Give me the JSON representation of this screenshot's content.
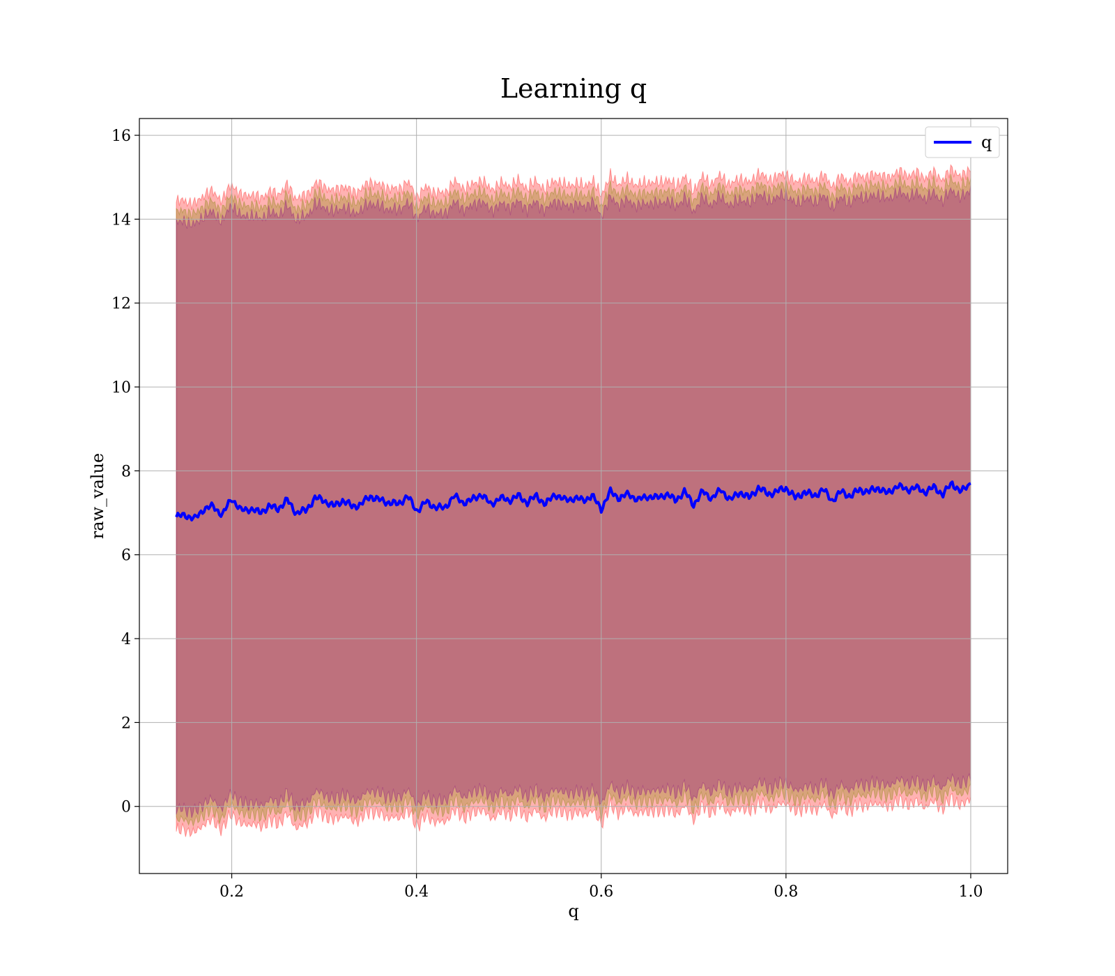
{
  "chart_data": {
    "type": "line",
    "title": "Learning q",
    "xlabel": "q",
    "ylabel": "raw_value",
    "xlim": [
      0.1,
      1.04
    ],
    "ylim": [
      -1.6,
      16.4
    ],
    "xticks": [
      0.2,
      0.4,
      0.6,
      0.8,
      1.0
    ],
    "xtick_labels": [
      "0.2",
      "0.4",
      "0.6",
      "0.8",
      "1.0"
    ],
    "yticks": [
      0,
      2,
      4,
      6,
      8,
      10,
      12,
      14,
      16
    ],
    "ytick_labels": [
      "0",
      "2",
      "4",
      "6",
      "8",
      "10",
      "12",
      "14",
      "16"
    ],
    "grid": true,
    "legend": {
      "position": "top-right",
      "entries": [
        "q"
      ]
    },
    "series": [
      {
        "name": "q",
        "color": "#0000ff",
        "x": [
          0.14,
          0.15,
          0.16,
          0.17,
          0.18,
          0.19,
          0.2,
          0.21,
          0.22,
          0.23,
          0.24,
          0.25,
          0.26,
          0.27,
          0.28,
          0.29,
          0.3,
          0.31,
          0.32,
          0.33,
          0.34,
          0.35,
          0.36,
          0.37,
          0.38,
          0.39,
          0.4,
          0.41,
          0.42,
          0.43,
          0.44,
          0.45,
          0.46,
          0.47,
          0.48,
          0.49,
          0.5,
          0.51,
          0.52,
          0.53,
          0.54,
          0.55,
          0.56,
          0.57,
          0.58,
          0.59,
          0.6,
          0.61,
          0.62,
          0.63,
          0.64,
          0.65,
          0.66,
          0.67,
          0.68,
          0.69,
          0.7,
          0.71,
          0.72,
          0.73,
          0.74,
          0.75,
          0.76,
          0.77,
          0.78,
          0.79,
          0.8,
          0.81,
          0.82,
          0.83,
          0.84,
          0.85,
          0.86,
          0.87,
          0.88,
          0.89,
          0.9,
          0.91,
          0.92,
          0.93,
          0.94,
          0.95,
          0.96,
          0.97,
          0.98,
          0.99,
          1.0
        ],
        "values": [
          6.9,
          6.95,
          6.85,
          7.1,
          7.15,
          6.95,
          7.35,
          7.05,
          7.1,
          7.0,
          7.15,
          7.1,
          7.3,
          7.0,
          7.05,
          7.35,
          7.3,
          7.15,
          7.3,
          7.15,
          7.2,
          7.4,
          7.3,
          7.25,
          7.2,
          7.4,
          7.05,
          7.25,
          7.15,
          7.1,
          7.4,
          7.25,
          7.3,
          7.45,
          7.2,
          7.35,
          7.3,
          7.4,
          7.25,
          7.4,
          7.2,
          7.45,
          7.3,
          7.35,
          7.3,
          7.4,
          7.1,
          7.5,
          7.35,
          7.45,
          7.3,
          7.4,
          7.35,
          7.45,
          7.3,
          7.5,
          7.2,
          7.5,
          7.35,
          7.55,
          7.3,
          7.5,
          7.35,
          7.6,
          7.45,
          7.5,
          7.6,
          7.35,
          7.5,
          7.4,
          7.55,
          7.3,
          7.5,
          7.4,
          7.55,
          7.5,
          7.6,
          7.45,
          7.65,
          7.55,
          7.6,
          7.5,
          7.6,
          7.45,
          7.7,
          7.5,
          7.7
        ]
      }
    ],
    "bands": [
      {
        "color": "#ff0000",
        "opacity": 0.3,
        "offset": 7.5
      },
      {
        "color": "#808000",
        "opacity": 0.3,
        "offset": 7.25
      },
      {
        "color": "#800080",
        "opacity": 0.3,
        "offset": 7.0
      }
    ]
  }
}
